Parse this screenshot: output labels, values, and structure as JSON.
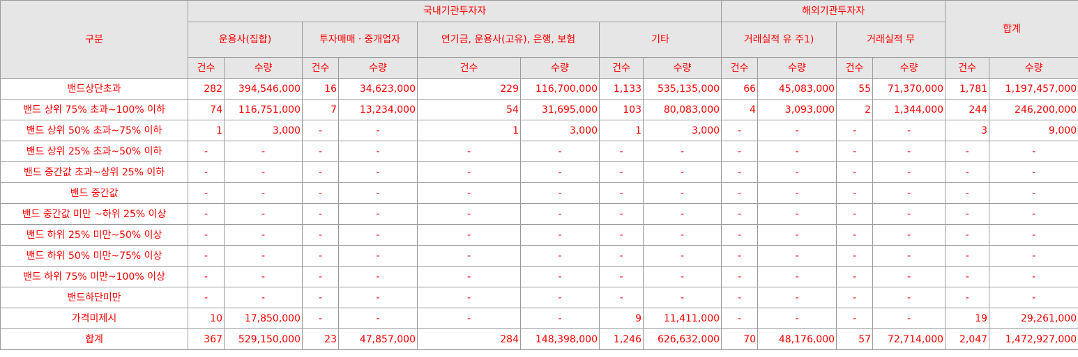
{
  "header": {
    "category": "구분",
    "domestic": "국내기관투자자",
    "foreign": "해외기관투자자",
    "total": "합계",
    "groups": [
      "운용사(집합)",
      "투자매매ㆍ중개업자",
      "연기금, 운용사(고유), 은행, 보험",
      "기타",
      "거래실적 유 주1)",
      "거래실적 무",
      "합계"
    ],
    "count": "건수",
    "qty": "수량"
  },
  "rows": [
    {
      "label": "밴드상단초과",
      "cells": [
        "282",
        "394,546,000",
        "16",
        "34,623,000",
        "229",
        "116,700,000",
        "1,133",
        "535,135,000",
        "66",
        "45,083,000",
        "55",
        "71,370,000",
        "1,781",
        "1,197,457,000"
      ]
    },
    {
      "label": "밴드 상위 75% 초과~100% 이하",
      "cells": [
        "74",
        "116,751,000",
        "7",
        "13,234,000",
        "54",
        "31,695,000",
        "103",
        "80,083,000",
        "4",
        "3,093,000",
        "2",
        "1,344,000",
        "244",
        "246,200,000"
      ]
    },
    {
      "label": "밴드 상위 50% 초과~75% 이하",
      "cells": [
        "1",
        "3,000",
        "-",
        "-",
        "1",
        "3,000",
        "1",
        "3,000",
        "-",
        "-",
        "-",
        "-",
        "3",
        "9,000"
      ]
    },
    {
      "label": "밴드 상위 25% 초과~50% 이하",
      "cells": [
        "-",
        "-",
        "-",
        "-",
        "-",
        "-",
        "-",
        "-",
        "-",
        "-",
        "-",
        "-",
        "-",
        "-"
      ]
    },
    {
      "label": "밴드 중간값 초과~상위 25% 이하",
      "cells": [
        "-",
        "-",
        "-",
        "-",
        "-",
        "-",
        "-",
        "-",
        "-",
        "-",
        "-",
        "-",
        "-",
        "-"
      ]
    },
    {
      "label": "밴드 중간값",
      "cells": [
        "-",
        "-",
        "-",
        "-",
        "-",
        "-",
        "-",
        "-",
        "-",
        "-",
        "-",
        "-",
        "-",
        "-"
      ]
    },
    {
      "label": "밴드 중간값 미만 ~하위 25% 이상",
      "cells": [
        "-",
        "-",
        "-",
        "-",
        "-",
        "-",
        "-",
        "-",
        "-",
        "-",
        "-",
        "-",
        "-",
        "-"
      ]
    },
    {
      "label": "밴드 하위 25% 미만~50% 이상",
      "cells": [
        "-",
        "-",
        "-",
        "-",
        "-",
        "-",
        "-",
        "-",
        "-",
        "-",
        "-",
        "-",
        "-",
        "-"
      ]
    },
    {
      "label": "밴드 하위 50% 미만~75% 이상",
      "cells": [
        "-",
        "-",
        "-",
        "-",
        "-",
        "-",
        "-",
        "-",
        "-",
        "-",
        "-",
        "-",
        "-",
        "-"
      ]
    },
    {
      "label": "밴드 하위 75% 미만~100% 이상",
      "cells": [
        "-",
        "-",
        "-",
        "-",
        "-",
        "-",
        "-",
        "-",
        "-",
        "-",
        "-",
        "-",
        "-",
        "-"
      ]
    },
    {
      "label": "밴드하단미만",
      "cells": [
        "-",
        "-",
        "-",
        "-",
        "-",
        "-",
        "-",
        "-",
        "-",
        "-",
        "-",
        "-",
        "-",
        "-"
      ]
    },
    {
      "label": "가격미제시",
      "cells": [
        "10",
        "17,850,000",
        "-",
        "-",
        "-",
        "-",
        "9",
        "11,411,000",
        "-",
        "-",
        "-",
        "-",
        "19",
        "29,261,000"
      ]
    },
    {
      "label": "합계",
      "cells": [
        "367",
        "529,150,000",
        "23",
        "47,857,000",
        "284",
        "148,398,000",
        "1,246",
        "626,632,000",
        "70",
        "48,176,000",
        "57",
        "72,714,000",
        "2,047",
        "1,472,927,000"
      ]
    }
  ],
  "colors": {
    "text": "#ff0000",
    "header_bg": "#e6e6e6",
    "border": "#9a9a9a"
  }
}
